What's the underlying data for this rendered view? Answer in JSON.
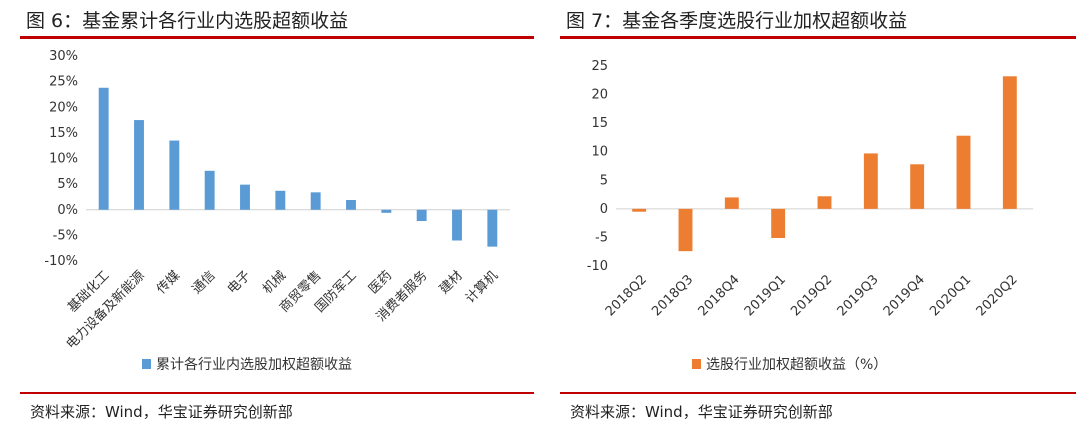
{
  "chart_data": [
    {
      "type": "bar",
      "title": "图 6：基金累计各行业内选股超额收益",
      "categories": [
        "基础化工",
        "电力设备及新能源",
        "传媒",
        "通信",
        "电子",
        "机械",
        "商贸零售",
        "国防军工",
        "医药",
        "消费者服务",
        "建材",
        "计算机"
      ],
      "series": [
        {
          "name": "累计各行业内选股加权超额收益",
          "values": [
            23.8,
            17.5,
            13.5,
            7.6,
            4.9,
            3.7,
            3.4,
            1.9,
            -0.6,
            -2.2,
            -6.0,
            -7.2
          ],
          "color": "#5b9bd5"
        }
      ],
      "yticks": [
        "30%",
        "25%",
        "20%",
        "15%",
        "10%",
        "5%",
        "0%",
        "-5%",
        "-10%"
      ],
      "ylim": [
        -10,
        30
      ],
      "legend": "bottom",
      "source": "资料来源：Wind，华宝证券研究创新部"
    },
    {
      "type": "bar",
      "title": "图 7：基金各季度选股行业加权超额收益",
      "categories": [
        "2018Q2",
        "2018Q3",
        "2018Q4",
        "2019Q1",
        "2019Q2",
        "2019Q3",
        "2019Q4",
        "2020Q1",
        "2020Q2"
      ],
      "series": [
        {
          "name": "选股行业加权超额收益（%）",
          "values": [
            -0.5,
            -7.4,
            2.0,
            -5.1,
            2.2,
            9.7,
            7.8,
            12.8,
            23.2
          ],
          "color": "#ed7d31"
        }
      ],
      "yticks": [
        "25",
        "20",
        "15",
        "10",
        "5",
        "0",
        "-5",
        "-10"
      ],
      "ylim": [
        -10,
        25
      ],
      "legend": "bottom",
      "source": "资料来源：Wind，华宝证券研究创新部"
    }
  ]
}
